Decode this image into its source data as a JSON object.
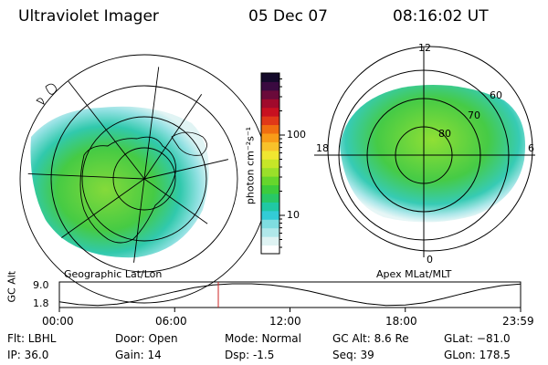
{
  "header": {
    "instrument": "Ultraviolet Imager",
    "date": "05 Dec 07",
    "time": "08:16:02 UT"
  },
  "left_map": {
    "label": "Geographic Lat/Lon"
  },
  "right_map": {
    "label": "Apex MLat/MLT",
    "mlt_labels": [
      "12",
      "18",
      "6",
      "0"
    ],
    "mlat_labels": [
      "60",
      "70",
      "80"
    ]
  },
  "colorbar": {
    "label": "photon cm⁻²s⁻¹",
    "ticks": [
      "100",
      "10"
    ],
    "tick_values": [
      100,
      10
    ],
    "colors": [
      "#ffffff",
      "#dff3f3",
      "#b0e8ea",
      "#7fdde0",
      "#33ccd6",
      "#20c8a4",
      "#28c866",
      "#3ccc3c",
      "#66d62c",
      "#9ae02a",
      "#c6e628",
      "#f0e630",
      "#f8c22a",
      "#f89c18",
      "#f06e10",
      "#e03818",
      "#c81020",
      "#a00a2c",
      "#6a0a3a",
      "#3a0a40",
      "#140a2a"
    ]
  },
  "altitude_plot": {
    "ylabel": "GC Alt",
    "yticks": [
      "9.0",
      "1.8"
    ],
    "xticks": [
      "00:00",
      "06:00",
      "12:00",
      "18:00",
      "23:59"
    ],
    "current_time_hours": 8.27,
    "series_hours": [
      0,
      1,
      2,
      3,
      4,
      5,
      6,
      7,
      8,
      9,
      10,
      11,
      12,
      13,
      14,
      15,
      16,
      17,
      18,
      19,
      20,
      21,
      22,
      23,
      24
    ],
    "series_alt": [
      3.1,
      2.2,
      1.9,
      2.3,
      3.4,
      4.9,
      6.4,
      7.7,
      8.6,
      9.0,
      9.0,
      8.6,
      7.8,
      6.6,
      5.1,
      3.6,
      2.5,
      1.9,
      2.0,
      2.8,
      4.2,
      5.8,
      7.3,
      8.4,
      8.9
    ]
  },
  "footer": {
    "flt": "Flt: LBHL",
    "ip": "IP: 36.0",
    "door": "Door: Open",
    "gain": "Gain: 14",
    "mode": "Mode: Normal",
    "dsp": "Dsp:    -1.5",
    "gcalt": "GC Alt: 8.6 Re",
    "seq": "Seq: 39",
    "glat": "GLat: −81.0",
    "glon": "GLon: 178.5"
  }
}
